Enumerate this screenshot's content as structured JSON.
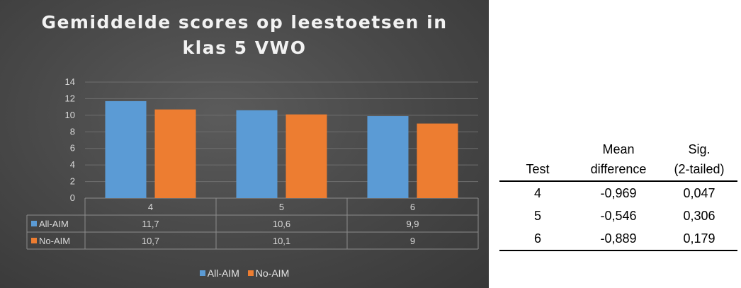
{
  "chart_data": {
    "type": "bar",
    "title": "Gemiddelde scores op leestoetsen in klas 5 VWO",
    "categories": [
      "4",
      "5",
      "6"
    ],
    "series": [
      {
        "name": "All-AIM",
        "values": [
          11.7,
          10.6,
          9.9
        ],
        "labels": [
          "11,7",
          "10,6",
          "9,9"
        ],
        "color": "#5b9bd5"
      },
      {
        "name": "No-AIM",
        "values": [
          10.7,
          10.1,
          9
        ],
        "labels": [
          "10,7",
          "10,1",
          "9"
        ],
        "color": "#ed7d31"
      }
    ],
    "ylim": [
      0,
      14
    ],
    "yticks": [
      0,
      2,
      4,
      6,
      8,
      10,
      12,
      14
    ],
    "grid": true,
    "legend_position": "bottom",
    "data_table": true
  },
  "table": {
    "headers": {
      "test": "Test",
      "mean_line1": "Mean",
      "mean_line2": "difference",
      "sig_line1": "Sig.",
      "sig_line2": "(2-tailed)"
    },
    "rows": [
      {
        "test": "4",
        "mean_diff": "-0,969",
        "sig": "0,047"
      },
      {
        "test": "5",
        "mean_diff": "-0,546",
        "sig": "0,306"
      },
      {
        "test": "6",
        "mean_diff": "-0,889",
        "sig": "0,179"
      }
    ]
  }
}
